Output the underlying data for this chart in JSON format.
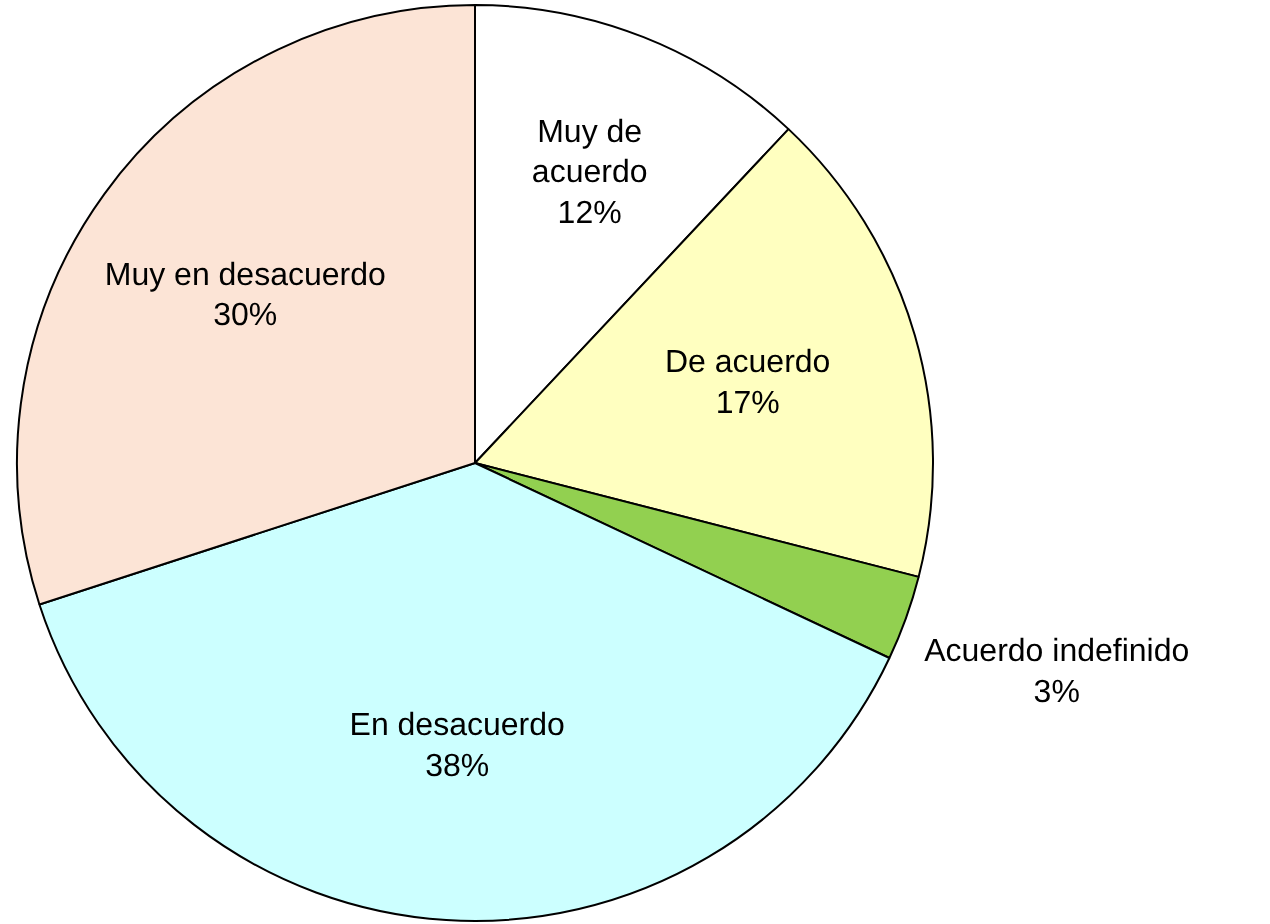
{
  "chart_data": {
    "type": "pie",
    "categories": [
      "Muy de acuerdo",
      "De acuerdo",
      "Acuerdo indefinido",
      "En desacuerdo",
      "Muy en desacuerdo"
    ],
    "values": [
      12,
      17,
      3,
      38,
      30
    ],
    "colors": [
      "#ffffff",
      "#ffffc0",
      "#92d050",
      "#ccffff",
      "#fce4d6"
    ],
    "value_labels": [
      "12%",
      "17%",
      "3%",
      "38%",
      "30%"
    ]
  }
}
